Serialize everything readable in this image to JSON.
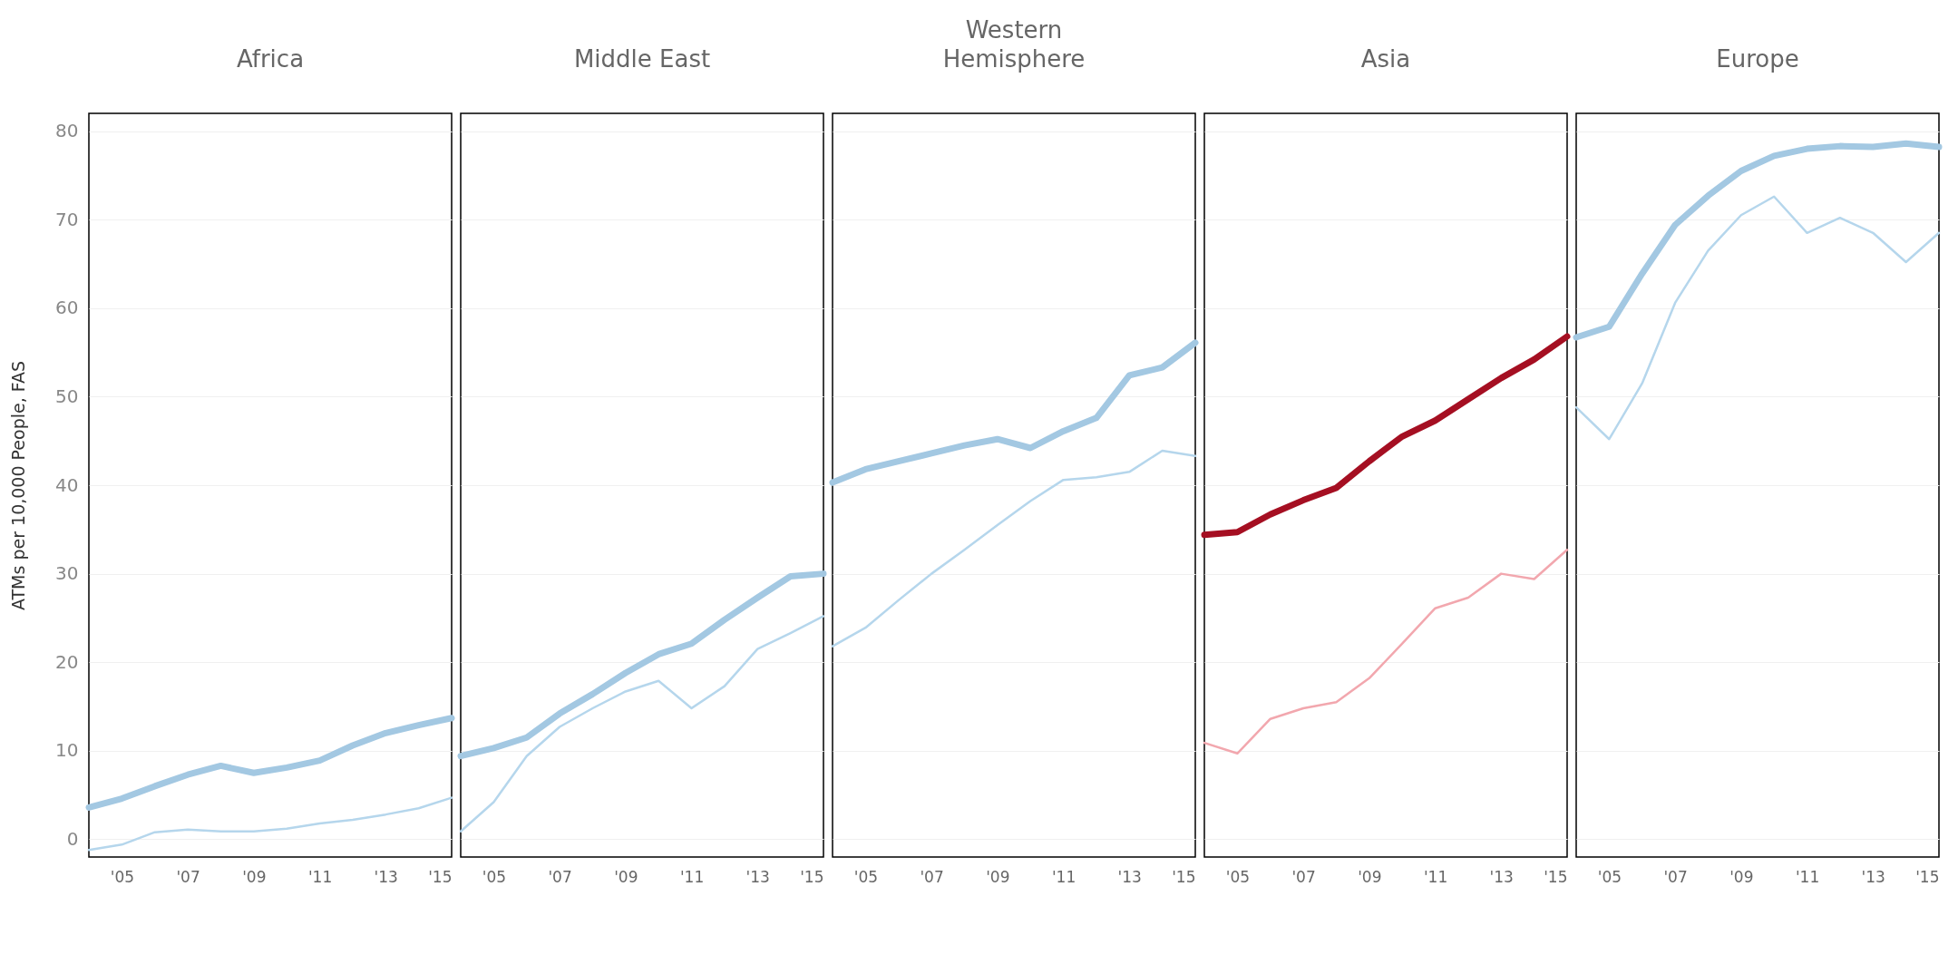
{
  "chart_data": [
    {
      "type": "line",
      "title": "Africa",
      "ylabel": "ATMs per 10,000 People, FAS",
      "grid": "y",
      "line_style": "solid",
      "xlim": [
        2004,
        2015
      ],
      "xticks": [
        {
          "value": 2005,
          "label": "'05"
        },
        {
          "value": 2007,
          "label": "'07"
        },
        {
          "value": 2009,
          "label": "'09"
        },
        {
          "value": 2011,
          "label": "'11"
        },
        {
          "value": 2013,
          "label": "'13"
        },
        {
          "value": 2015,
          "label": "'15"
        }
      ],
      "ylim": [
        -2,
        82
      ],
      "yticks": [
        0,
        10,
        20,
        30,
        40,
        50,
        60,
        70,
        80
      ],
      "x": [
        2004,
        2005,
        2006,
        2007,
        2008,
        2009,
        2010,
        2011,
        2012,
        2013,
        2014,
        2015
      ],
      "series": [
        {
          "color": "#a3c8e2",
          "values": [
            3.6,
            4.6,
            6.0,
            7.3,
            8.3,
            7.5,
            8.1,
            8.9,
            10.6,
            12.0,
            12.9,
            13.7
          ]
        },
        {
          "color": "#b5d6ec",
          "values": [
            -1.2,
            -0.6,
            0.8,
            1.1,
            0.9,
            0.9,
            1.2,
            1.8,
            2.2,
            2.8,
            3.5,
            4.7
          ]
        }
      ]
    },
    {
      "type": "line",
      "title": "Middle East",
      "grid": "y",
      "line_style": "solid",
      "tick_labels": "x",
      "xlim": [
        2004,
        2015
      ],
      "xticks": [
        {
          "value": 2005,
          "label": "'05"
        },
        {
          "value": 2007,
          "label": "'07"
        },
        {
          "value": 2009,
          "label": "'09"
        },
        {
          "value": 2011,
          "label": "'11"
        },
        {
          "value": 2013,
          "label": "'13"
        },
        {
          "value": 2015,
          "label": "'15"
        }
      ],
      "ylim": [
        -2,
        82
      ],
      "yticks": [
        0,
        10,
        20,
        30,
        40,
        50,
        60,
        70,
        80
      ],
      "x": [
        2004,
        2005,
        2006,
        2007,
        2008,
        2009,
        2010,
        2011,
        2012,
        2013,
        2014,
        2015
      ],
      "series": [
        {
          "color": "#a3c8e2",
          "values": [
            9.4,
            10.3,
            11.5,
            14.2,
            16.4,
            18.8,
            20.9,
            22.1,
            24.8,
            27.3,
            29.7,
            30.0
          ]
        },
        {
          "color": "#b5d6ec",
          "values": [
            0.9,
            4.2,
            9.4,
            12.7,
            14.8,
            16.7,
            17.9,
            14.8,
            17.3,
            21.5,
            23.3,
            25.2
          ]
        }
      ]
    },
    {
      "type": "line",
      "title": "Western Hemisphere",
      "grid": "y",
      "line_style": "solid",
      "tick_labels": "x",
      "xlim": [
        2004,
        2015
      ],
      "xticks": [
        {
          "value": 2005,
          "label": "'05"
        },
        {
          "value": 2007,
          "label": "'07"
        },
        {
          "value": 2009,
          "label": "'09"
        },
        {
          "value": 2011,
          "label": "'11"
        },
        {
          "value": 2013,
          "label": "'13"
        },
        {
          "value": 2015,
          "label": "'15"
        }
      ],
      "ylim": [
        -2,
        82
      ],
      "yticks": [
        0,
        10,
        20,
        30,
        40,
        50,
        60,
        70,
        80
      ],
      "x": [
        2004,
        2005,
        2006,
        2007,
        2008,
        2009,
        2010,
        2011,
        2012,
        2013,
        2014,
        2015
      ],
      "series": [
        {
          "color": "#a3c8e2",
          "values": [
            40.3,
            41.8,
            42.7,
            43.6,
            44.5,
            45.2,
            44.2,
            46.1,
            47.6,
            52.4,
            53.3,
            56.1
          ]
        },
        {
          "color": "#b5d6ec",
          "values": [
            21.8,
            23.9,
            27.0,
            30.0,
            32.7,
            35.5,
            38.2,
            40.6,
            40.9,
            41.5,
            43.9,
            43.3
          ]
        }
      ]
    },
    {
      "type": "line",
      "title": "Asia",
      "grid": "y",
      "line_style": "solid",
      "tick_labels": "x",
      "xlim": [
        2004,
        2015
      ],
      "xticks": [
        {
          "value": 2005,
          "label": "'05"
        },
        {
          "value": 2007,
          "label": "'07"
        },
        {
          "value": 2009,
          "label": "'09"
        },
        {
          "value": 2011,
          "label": "'11"
        },
        {
          "value": 2013,
          "label": "'13"
        },
        {
          "value": 2015,
          "label": "'15"
        }
      ],
      "ylim": [
        -2,
        82
      ],
      "yticks": [
        0,
        10,
        20,
        30,
        40,
        50,
        60,
        70,
        80
      ],
      "x": [
        2004,
        2005,
        2006,
        2007,
        2008,
        2009,
        2010,
        2011,
        2012,
        2013,
        2014,
        2015
      ],
      "series": [
        {
          "color": "#a50f22",
          "values": [
            34.4,
            34.7,
            36.7,
            38.3,
            39.7,
            42.7,
            45.5,
            47.3,
            49.7,
            52.1,
            54.2,
            56.8
          ]
        },
        {
          "color": "#f2a7ae",
          "values": [
            10.9,
            9.7,
            13.6,
            14.8,
            15.5,
            18.2,
            22.1,
            26.1,
            27.3,
            30.0,
            29.4,
            32.7
          ]
        }
      ]
    },
    {
      "type": "line",
      "title": "Europe",
      "grid": "y",
      "line_style": "solid",
      "tick_labels": "x",
      "xlim": [
        2004,
        2015
      ],
      "xticks": [
        {
          "value": 2005,
          "label": "'05"
        },
        {
          "value": 2007,
          "label": "'07"
        },
        {
          "value": 2009,
          "label": "'09"
        },
        {
          "value": 2011,
          "label": "'11"
        },
        {
          "value": 2013,
          "label": "'13"
        },
        {
          "value": 2015,
          "label": "'15"
        }
      ],
      "ylim": [
        -2,
        82
      ],
      "yticks": [
        0,
        10,
        20,
        30,
        40,
        50,
        60,
        70,
        80
      ],
      "x": [
        2004,
        2005,
        2006,
        2007,
        2008,
        2009,
        2010,
        2011,
        2012,
        2013,
        2014,
        2015
      ],
      "series": [
        {
          "color": "#a3c8e2",
          "values": [
            56.7,
            57.9,
            63.9,
            69.4,
            72.7,
            75.5,
            77.2,
            78.0,
            78.3,
            78.2,
            78.6,
            78.2
          ]
        },
        {
          "color": "#b5d6ec",
          "values": [
            48.8,
            45.2,
            51.5,
            60.6,
            66.5,
            70.5,
            72.6,
            68.5,
            70.2,
            68.5,
            65.2,
            68.5
          ]
        }
      ]
    }
  ]
}
